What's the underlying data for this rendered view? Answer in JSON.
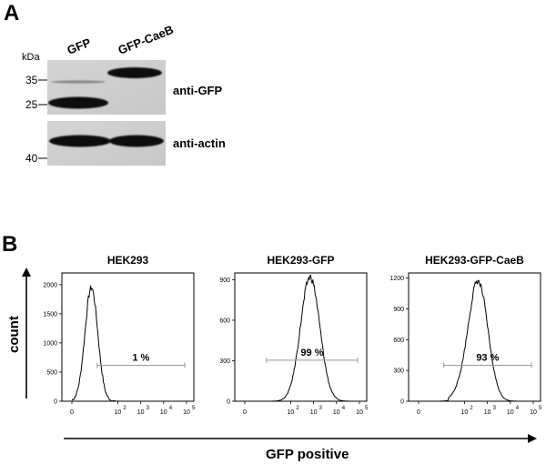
{
  "panel_a": {
    "letter": "A",
    "kda_label": "kDa",
    "lane_labels": [
      "GFP",
      "GFP-CaeB"
    ],
    "markers_top": [
      "35",
      "25"
    ],
    "marker_bottom": "40",
    "blot_labels": [
      "anti-GFP",
      "anti-actin"
    ]
  },
  "panel_b": {
    "letter": "B",
    "y_axis_label": "count",
    "x_axis_label": "GFP positive",
    "x_ticks": [
      "0",
      "10",
      "10",
      "10",
      "10"
    ],
    "x_tick_exponents": [
      "",
      "2",
      "3",
      "4",
      "5"
    ]
  },
  "chart_data": [
    {
      "type": "area",
      "title": "HEK293",
      "ylim": [
        0,
        2200
      ],
      "yticks": [
        "0",
        "500",
        "1000",
        "1500",
        "2000"
      ],
      "gate_label": "1 %",
      "peak_x_decade": 0.85,
      "peak_y": 1950
    },
    {
      "type": "area",
      "title": "HEK293-GFP",
      "ylim": [
        0,
        950
      ],
      "yticks": [
        "0",
        "300",
        "600",
        "900"
      ],
      "gate_label": "99 %",
      "peak_x_decade": 2.85,
      "peak_y": 920
    },
    {
      "type": "area",
      "title": "HEK293-GFP-CaeB",
      "ylim": [
        0,
        1250
      ],
      "yticks": [
        "0",
        "300",
        "600",
        "900",
        "1200"
      ],
      "gate_label": "93 %",
      "peak_x_decade": 2.6,
      "peak_y": 1160
    }
  ]
}
